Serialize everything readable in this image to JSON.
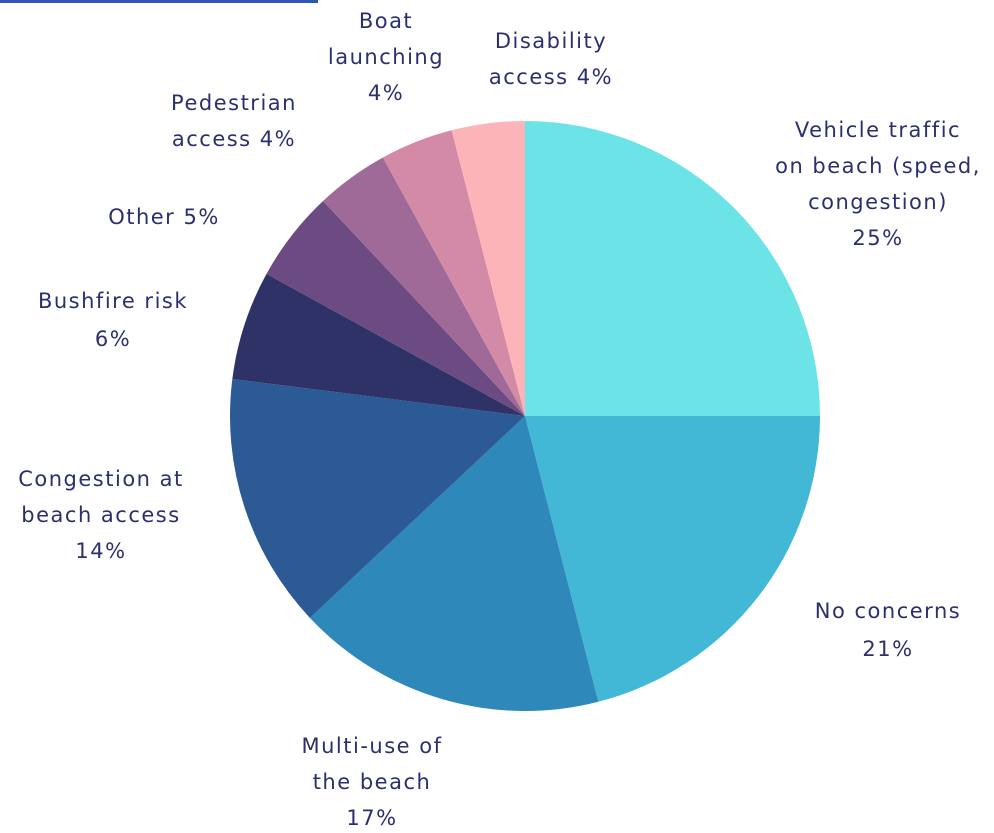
{
  "chart_data": {
    "type": "pie",
    "title": "",
    "start_angle_deg": 0,
    "direction": "clockwise",
    "slices": [
      {
        "label": "Vehicle traffic on beach (speed, congestion)",
        "value": 25,
        "value_label": "25%",
        "label_lines": [
          "Vehicle traffic",
          "on beach (speed,",
          "congestion)",
          "25%"
        ],
        "color": "#6ce3e6"
      },
      {
        "label": "No concerns",
        "value": 21,
        "value_label": "21%",
        "label_lines": [
          "No concerns",
          "21%"
        ],
        "color": "#43b8d6"
      },
      {
        "label": "Multi-use of the beach",
        "value": 17,
        "value_label": "17%",
        "label_lines": [
          "Multi-use of",
          "the beach",
          "17%"
        ],
        "color": "#2e88ba"
      },
      {
        "label": "Congestion at beach access",
        "value": 14,
        "value_label": "14%",
        "label_lines": [
          "Congestion at",
          "beach access",
          "14%"
        ],
        "color": "#2b5a95"
      },
      {
        "label": "Bushfire risk",
        "value": 6,
        "value_label": "6%",
        "label_lines": [
          "Bushfire risk",
          "6%"
        ],
        "color": "#2e3266"
      },
      {
        "label": "Other",
        "value": 5,
        "value_label": "5%",
        "label_lines": [
          "Other 5%"
        ],
        "color": "#6b4b82"
      },
      {
        "label": "Pedestrian access",
        "value": 4,
        "value_label": "4%",
        "label_lines": [
          "Pedestrian",
          "access 4%"
        ],
        "color": "#a06a98"
      },
      {
        "label": "Boat launching",
        "value": 4,
        "value_label": "4%",
        "label_lines": [
          "Boat",
          "launching",
          "4%"
        ],
        "color": "#d28aa6"
      },
      {
        "label": "Disability access",
        "value": 4,
        "value_label": "4%",
        "label_lines": [
          "Disability",
          "access 4%"
        ],
        "color": "#fdb4b8"
      }
    ]
  },
  "colors": {
    "label_text": "#2b2f6e",
    "title_fragment": "#2f55b8"
  }
}
